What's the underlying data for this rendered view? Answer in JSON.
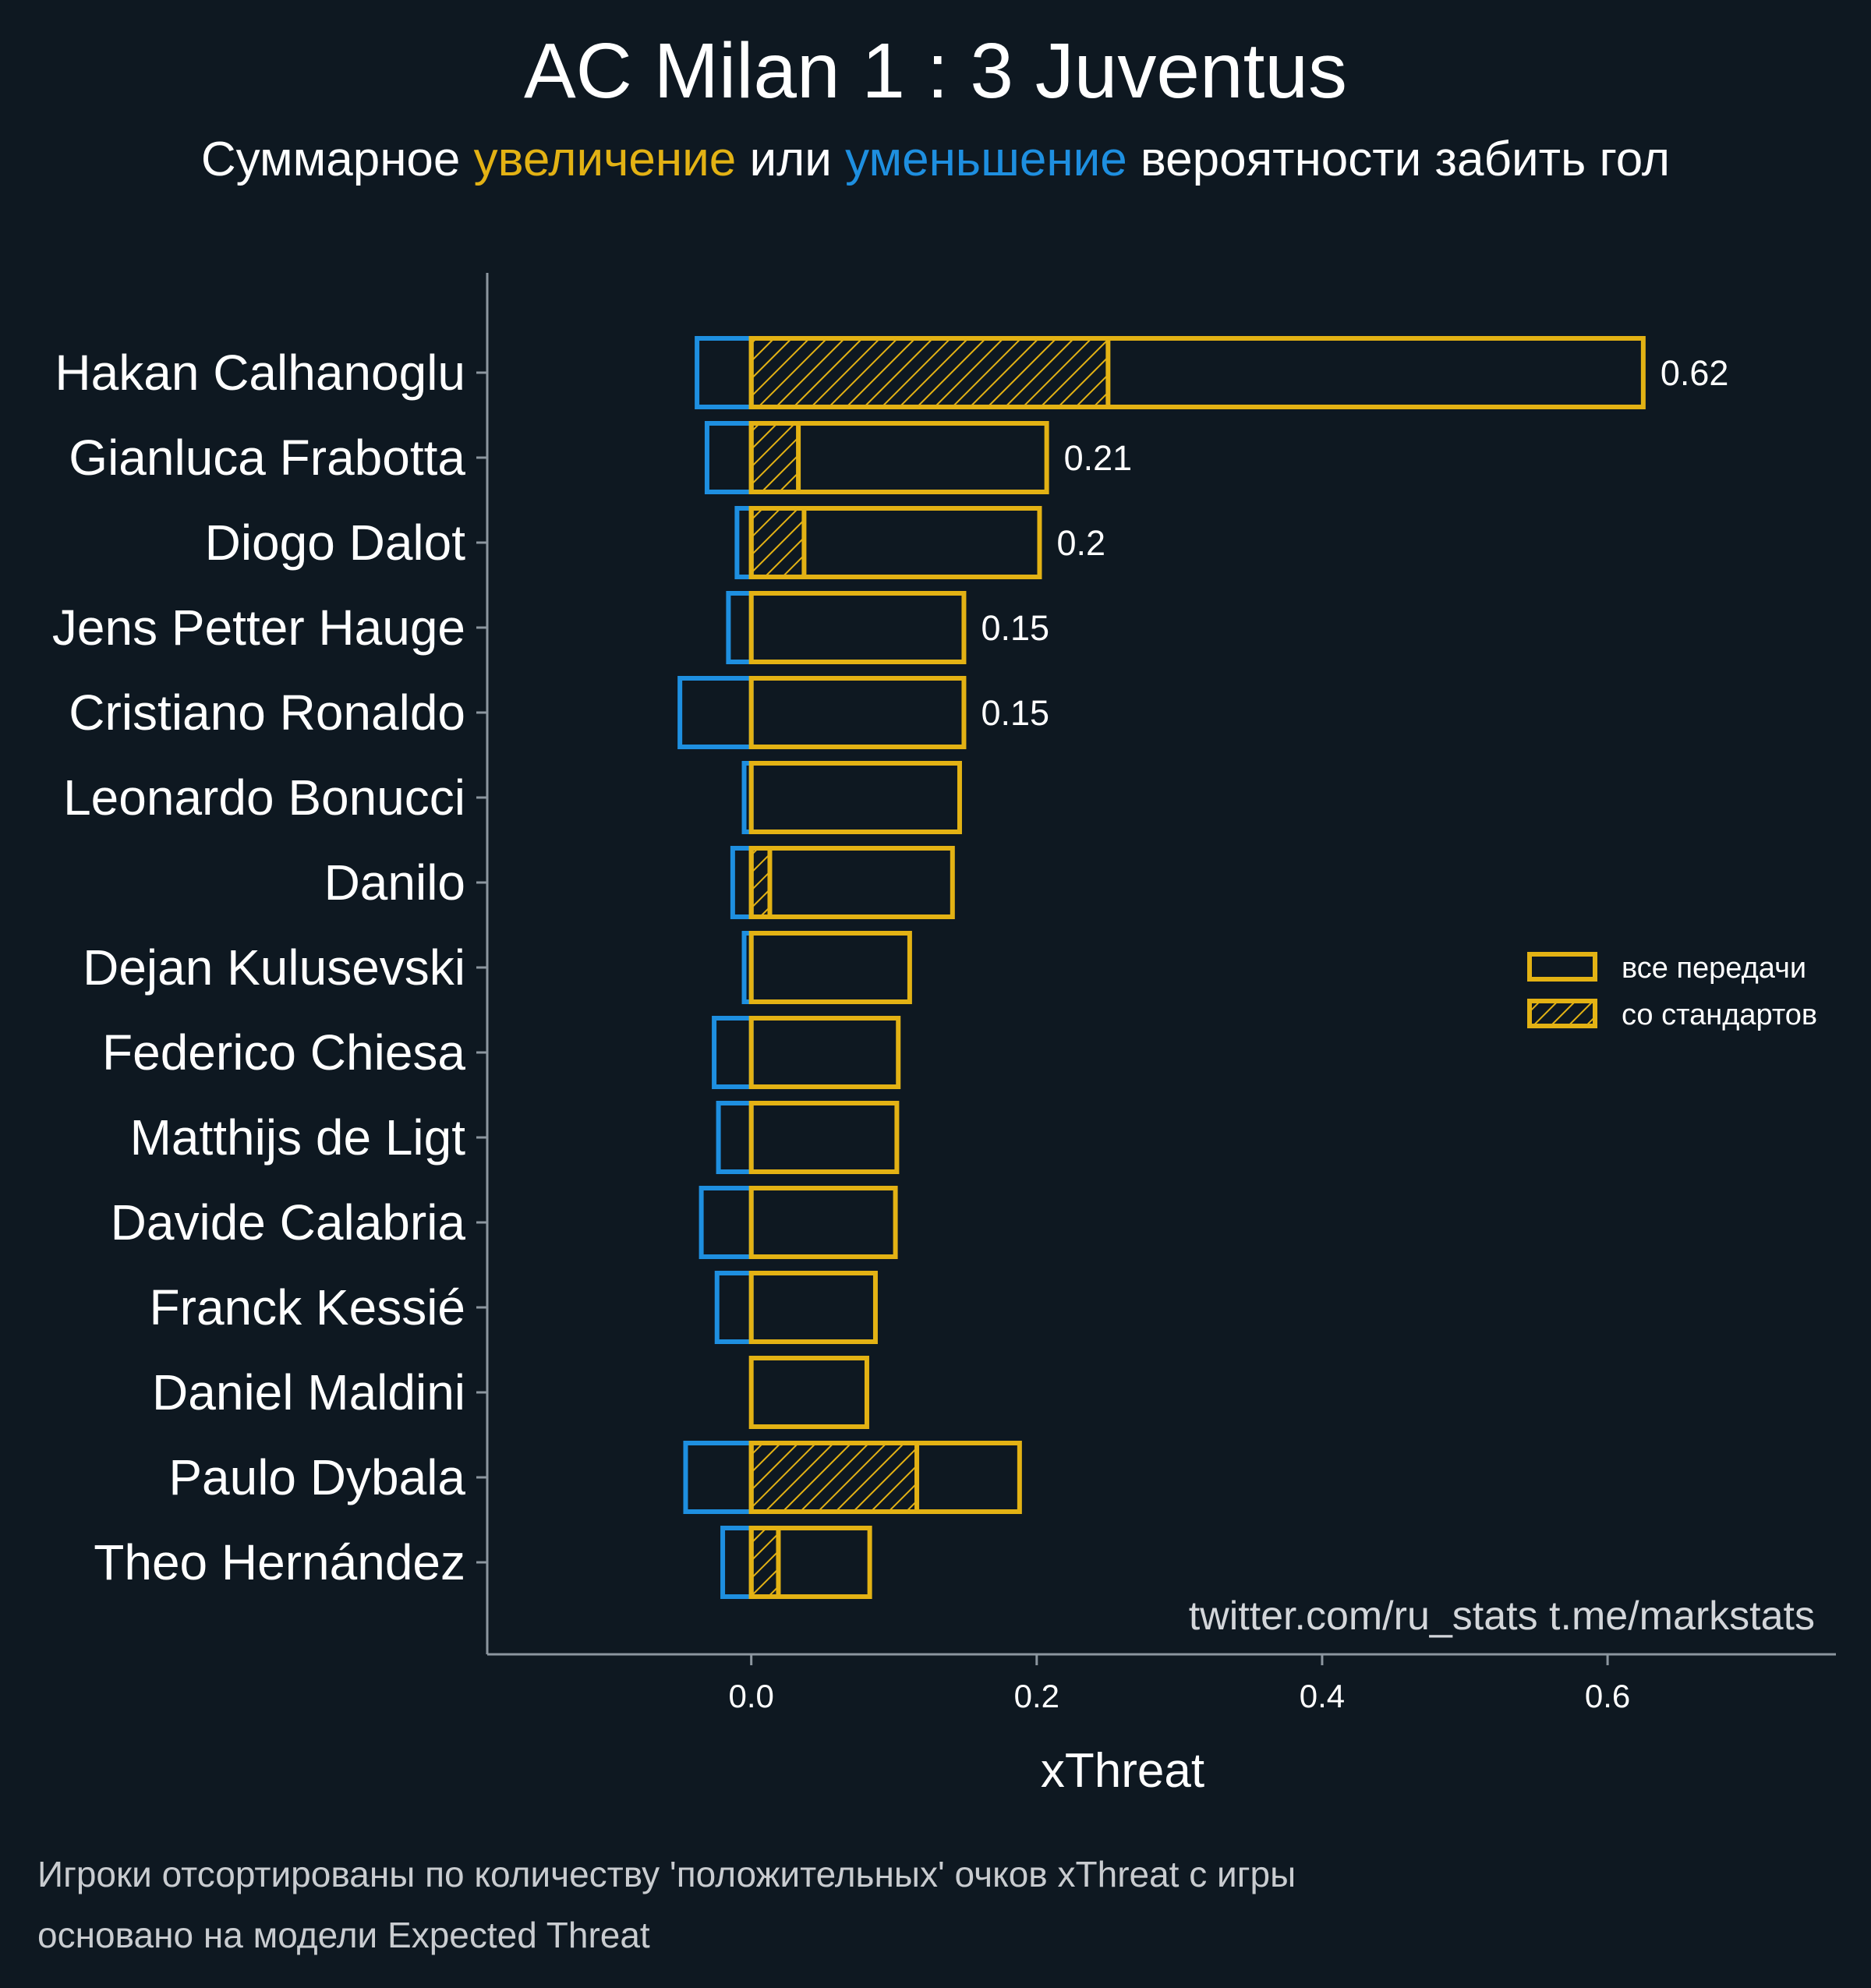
{
  "chart_data": {
    "type": "bar",
    "orientation": "horizontal",
    "title": "AC Milan 1 : 3 Juventus",
    "subtitle": {
      "prefix": "Суммарное ",
      "positive_word": "увеличение",
      "middle": " или ",
      "negative_word": "уменьшение",
      "suffix": " вероятности забить гол"
    },
    "xlabel": "xThreat",
    "ylabel": "",
    "xlim": [
      -0.185,
      0.76
    ],
    "xticks": [
      0.0,
      0.2,
      0.4,
      0.6
    ],
    "xtick_labels": [
      "0.0",
      "0.2",
      "0.4",
      "0.6"
    ],
    "grid": false,
    "legend_placement": "right",
    "legend": {
      "all_passes": "все передачи",
      "set_pieces": "со стандартов"
    },
    "colors": {
      "background": "#0e1821",
      "positive": "#e3b214",
      "negative": "#1e8fe0",
      "axis": "#8c969f"
    },
    "categories": [
      "Hakan Calhanoglu",
      "Gianluca Frabotta",
      "Diogo Dalot",
      "Jens Petter Hauge",
      "Cristiano Ronaldo",
      "Leonardo Bonucci",
      "Danilo",
      "Dejan Kulusevski",
      "Federico Chiesa",
      "Matthijs de Ligt",
      "Davide Calabria",
      "Franck Kessié",
      "Daniel Maldini",
      "Paulo Dybala",
      "Theo Hernández"
    ],
    "series": [
      {
        "name": "все передачи",
        "values": [
          0.625,
          0.207,
          0.202,
          0.149,
          0.149,
          0.146,
          0.141,
          0.111,
          0.103,
          0.102,
          0.101,
          0.087,
          0.081,
          0.188,
          0.083
        ]
      },
      {
        "name": "со стандартов",
        "values": [
          0.25,
          0.033,
          0.037,
          0.0,
          0.0,
          0.0,
          0.013,
          0.0,
          0.0,
          0.0,
          0.0,
          0.0,
          0.0,
          0.116,
          0.019
        ]
      },
      {
        "name": "negative",
        "values": [
          -0.038,
          -0.031,
          -0.01,
          -0.016,
          -0.05,
          -0.005,
          -0.013,
          -0.005,
          -0.026,
          -0.023,
          -0.035,
          -0.024,
          0.0,
          -0.046,
          -0.02
        ]
      }
    ],
    "data_labels": [
      "0.62",
      "0.21",
      "0.2",
      "0.15",
      "0.15",
      "",
      "",
      "",
      "",
      "",
      "",
      "",
      "",
      "",
      ""
    ]
  },
  "watermark": "twitter.com/ru_stats  t.me/markstats",
  "footnotes": [
    "Игроки отсортированы по количеству 'положительных' очков xThreat с игры",
    "основано на модели Expected Threat"
  ]
}
